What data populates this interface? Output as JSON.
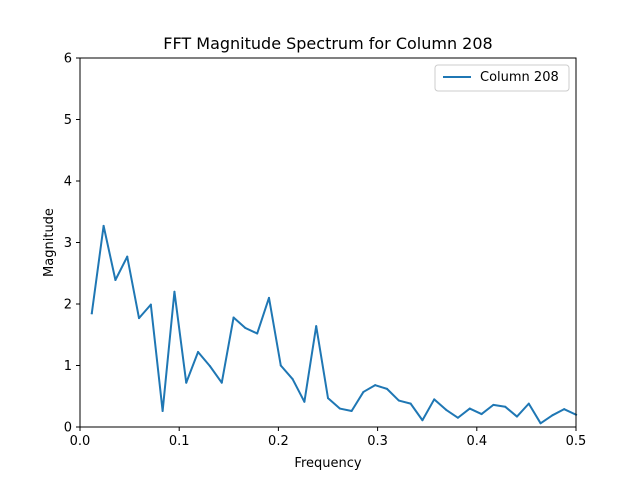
{
  "chart_data": {
    "type": "line",
    "title": "FFT Magnitude Spectrum for Column 208",
    "xlabel": "Frequency",
    "ylabel": "Magnitude",
    "xlim": [
      0.0,
      0.5
    ],
    "ylim": [
      0,
      6
    ],
    "xticks": [
      "0.0",
      "0.1",
      "0.2",
      "0.3",
      "0.4",
      "0.5"
    ],
    "yticks": [
      "0",
      "1",
      "2",
      "3",
      "4",
      "5",
      "6"
    ],
    "grid": false,
    "legend_position": "upper-right",
    "series": [
      {
        "name": "Column 208",
        "color": "#1f77b4",
        "x": [
          0.0119,
          0.0238,
          0.0357,
          0.0476,
          0.0595,
          0.0714,
          0.0833,
          0.0952,
          0.1071,
          0.119,
          0.131,
          0.1429,
          0.1548,
          0.1667,
          0.1786,
          0.1905,
          0.2024,
          0.2143,
          0.2262,
          0.2381,
          0.25,
          0.2619,
          0.2738,
          0.2857,
          0.2976,
          0.3095,
          0.3214,
          0.3333,
          0.3452,
          0.3571,
          0.369,
          0.381,
          0.3929,
          0.4048,
          0.4167,
          0.4286,
          0.4405,
          0.4524,
          0.4643,
          0.4762,
          0.4881,
          0.5
        ],
        "values": [
          1.85,
          3.27,
          2.39,
          2.77,
          1.77,
          1.99,
          0.26,
          2.2,
          0.72,
          1.22,
          0.99,
          0.72,
          1.78,
          1.61,
          1.52,
          2.1,
          1.0,
          0.78,
          0.41,
          1.64,
          0.47,
          0.3,
          0.26,
          0.57,
          0.68,
          0.62,
          0.43,
          0.38,
          0.11,
          0.45,
          0.28,
          0.15,
          0.3,
          0.21,
          0.36,
          0.33,
          0.17,
          0.38,
          0.06,
          0.19,
          0.29,
          0.2
        ]
      }
    ]
  }
}
